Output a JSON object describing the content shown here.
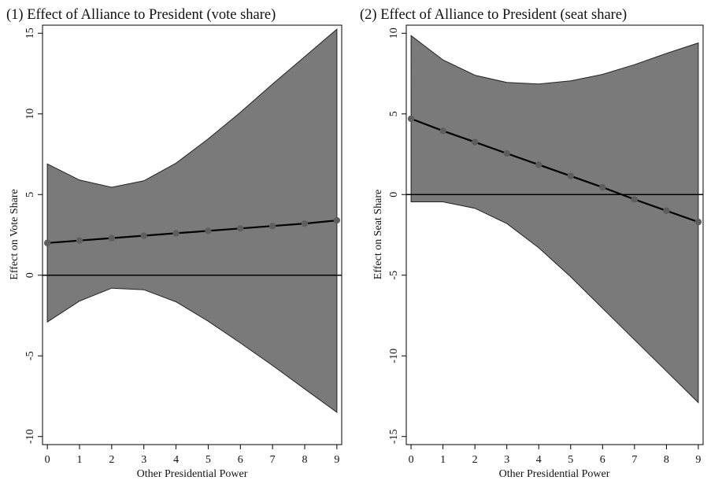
{
  "chart_data": [
    {
      "type": "line",
      "title": "(1) Effect of Alliance to President (vote share)",
      "xlabel": "Other Presidential Power",
      "ylabel": "Effect on Vote Share",
      "x": [
        0,
        1,
        2,
        3,
        4,
        5,
        6,
        7,
        8,
        9
      ],
      "xlim": [
        -0.15,
        9.15
      ],
      "ylim": [
        -10.5,
        15.5
      ],
      "xticks": [
        "0",
        "1",
        "2",
        "3",
        "4",
        "5",
        "6",
        "7",
        "8",
        "9"
      ],
      "yticks": [
        "-10",
        "-5",
        "0",
        "5",
        "10",
        "15"
      ],
      "reference_line": 0,
      "series": [
        {
          "role": "estimate",
          "values": [
            2.0,
            2.15,
            2.3,
            2.45,
            2.6,
            2.75,
            2.9,
            3.05,
            3.2,
            3.4
          ]
        },
        {
          "role": "upper",
          "values": [
            6.9,
            5.9,
            5.45,
            5.85,
            6.95,
            8.45,
            10.1,
            11.85,
            13.55,
            15.25
          ]
        },
        {
          "role": "lower",
          "values": [
            -2.9,
            -1.6,
            -0.8,
            -0.9,
            -1.65,
            -2.85,
            -4.2,
            -5.6,
            -7.05,
            -8.5
          ]
        }
      ]
    },
    {
      "type": "line",
      "title": "(2) Effect of Alliance to President (seat share)",
      "xlabel": "Other Presidential Power",
      "ylabel": "Effect on Seat Share",
      "x": [
        0,
        1,
        2,
        3,
        4,
        5,
        6,
        7,
        8,
        9
      ],
      "xlim": [
        -0.15,
        9.15
      ],
      "ylim": [
        -15.5,
        10.5
      ],
      "xticks": [
        "0",
        "1",
        "2",
        "3",
        "4",
        "5",
        "6",
        "7",
        "8",
        "9"
      ],
      "yticks": [
        "-15",
        "-10",
        "-5",
        "0",
        "5",
        "10"
      ],
      "reference_line": 0,
      "series": [
        {
          "role": "estimate",
          "values": [
            4.7,
            3.95,
            3.25,
            2.55,
            1.85,
            1.15,
            0.45,
            -0.3,
            -1.0,
            -1.7
          ]
        },
        {
          "role": "upper",
          "values": [
            9.85,
            8.35,
            7.4,
            6.95,
            6.85,
            7.05,
            7.45,
            8.05,
            8.75,
            9.4
          ]
        },
        {
          "role": "lower",
          "values": [
            -0.45,
            -0.45,
            -0.85,
            -1.8,
            -3.3,
            -5.1,
            -7.05,
            -9.0,
            -10.95,
            -12.9
          ]
        }
      ]
    }
  ]
}
